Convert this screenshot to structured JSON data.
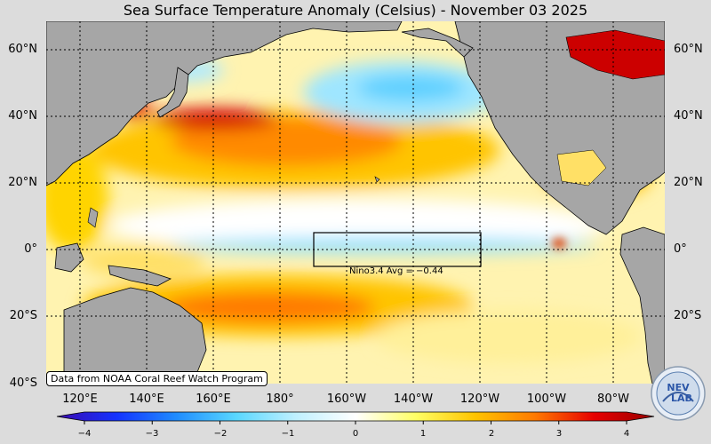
{
  "title": "Sea Surface Temperature Anomaly (Celsius) - November 03 2025",
  "lat_labels": [
    "60°N",
    "40°N",
    "20°N",
    "0°",
    "20°S",
    "40°S"
  ],
  "lon_labels": [
    "120°E",
    "140°E",
    "160°E",
    "180°",
    "160°W",
    "140°W",
    "120°W",
    "100°W",
    "80°W"
  ],
  "colorbar": {
    "ticks": [
      "−4",
      "−3",
      "−2",
      "−1",
      "0",
      "1",
      "2",
      "3",
      "4"
    ],
    "min": -4,
    "max": 4,
    "colors": [
      "#3b0ab0",
      "#1433ff",
      "#1f8cff",
      "#59d7ff",
      "#bff0ff",
      "#ffffff",
      "#ffff66",
      "#ffc400",
      "#ff7a00",
      "#e60000",
      "#990000"
    ]
  },
  "nino": {
    "label": "Nino3.4 Avg = −0.44",
    "value": -0.44
  },
  "source": "Data from NOAA Coral Reef Watch Program",
  "logo": {
    "text_a": "NEV",
    "text_b": "LAB"
  },
  "colors": {
    "ocean_base": "#fffbe0",
    "land": "#a6a6a6"
  }
}
